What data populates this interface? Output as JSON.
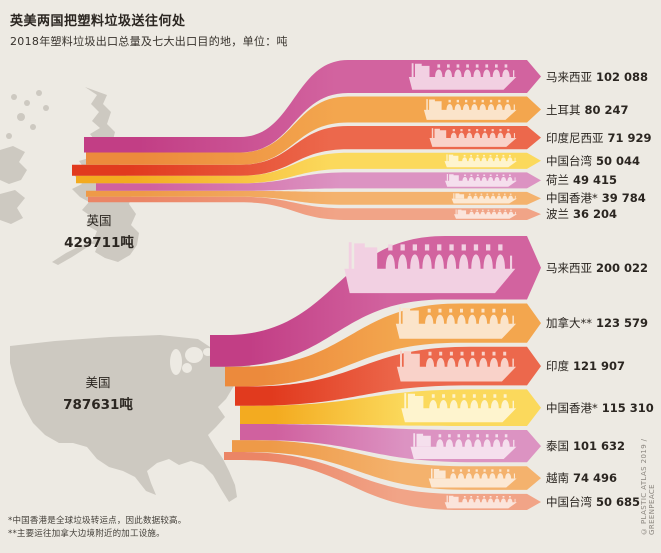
{
  "credit": "© PLASTIC ATLAS 2019 / GREENPEACE",
  "chart_data": {
    "type": "sankey",
    "title": "英美两国把塑料垃圾送往何处",
    "subtitle": "2018年塑料垃圾出口总量及七大出口目的地，单位：吨",
    "unit": "吨",
    "footnotes": [
      "*中国香港是全球垃圾转运点，因此数据较高。",
      "**主要运往加拿大边境附近的加工设施。"
    ],
    "colors": {
      "background": "#edeae3",
      "map": "#cdc9c1",
      "text": "#2b2621",
      "bands": {
        "magenta": "#d2639f",
        "orange": "#f3a64e",
        "red": "#ec684c",
        "yellow": "#fbd95c",
        "pink": "#dc93c2",
        "lightorange": "#f4b26d",
        "salmon": "#f1a487"
      },
      "bands_deep": {
        "magenta": "#c23e85",
        "orange": "#ec8a3c",
        "red": "#e13a1e",
        "yellow": "#f3ab20",
        "pink": "#d0619f",
        "lightorange": "#ee9a48",
        "salmon": "#eb8566"
      }
    },
    "sources": [
      {
        "name": "英国",
        "total": 429711,
        "total_label": "429711吨",
        "destinations": [
          {
            "name": "马来西亚",
            "value": 102088,
            "value_label": "102 088",
            "color": "magenta"
          },
          {
            "name": "土耳其",
            "value": 80247,
            "value_label": "80 247",
            "color": "orange"
          },
          {
            "name": "印度尼西亚",
            "value": 71929,
            "value_label": "71 929",
            "color": "red"
          },
          {
            "name": "中国台湾",
            "value": 50044,
            "value_label": "50 044",
            "color": "yellow"
          },
          {
            "name": "荷兰",
            "value": 49415,
            "value_label": "49 415",
            "color": "pink"
          },
          {
            "name": "中国香港*",
            "value": 39784,
            "value_label": "39 784",
            "color": "lightorange"
          },
          {
            "name": "波兰",
            "value": 36204,
            "value_label": "36 204",
            "color": "salmon"
          }
        ]
      },
      {
        "name": "美国",
        "total": 787631,
        "total_label": "787631吨",
        "destinations": [
          {
            "name": "马来西亚",
            "value": 200022,
            "value_label": "200 022",
            "color": "magenta"
          },
          {
            "name": "加拿大**",
            "value": 123579,
            "value_label": "123 579",
            "color": "orange"
          },
          {
            "name": "印度",
            "value": 121907,
            "value_label": "121 907",
            "color": "red"
          },
          {
            "name": "中国香港*",
            "value": 115310,
            "value_label": "115 310",
            "color": "yellow"
          },
          {
            "name": "泰国",
            "value": 101632,
            "value_label": "101 632",
            "color": "pink"
          },
          {
            "name": "越南",
            "value": 74496,
            "value_label": "74 496",
            "color": "lightorange"
          },
          {
            "name": "中国台湾",
            "value": 50685,
            "value_label": "50 685",
            "color": "salmon"
          }
        ]
      }
    ]
  }
}
